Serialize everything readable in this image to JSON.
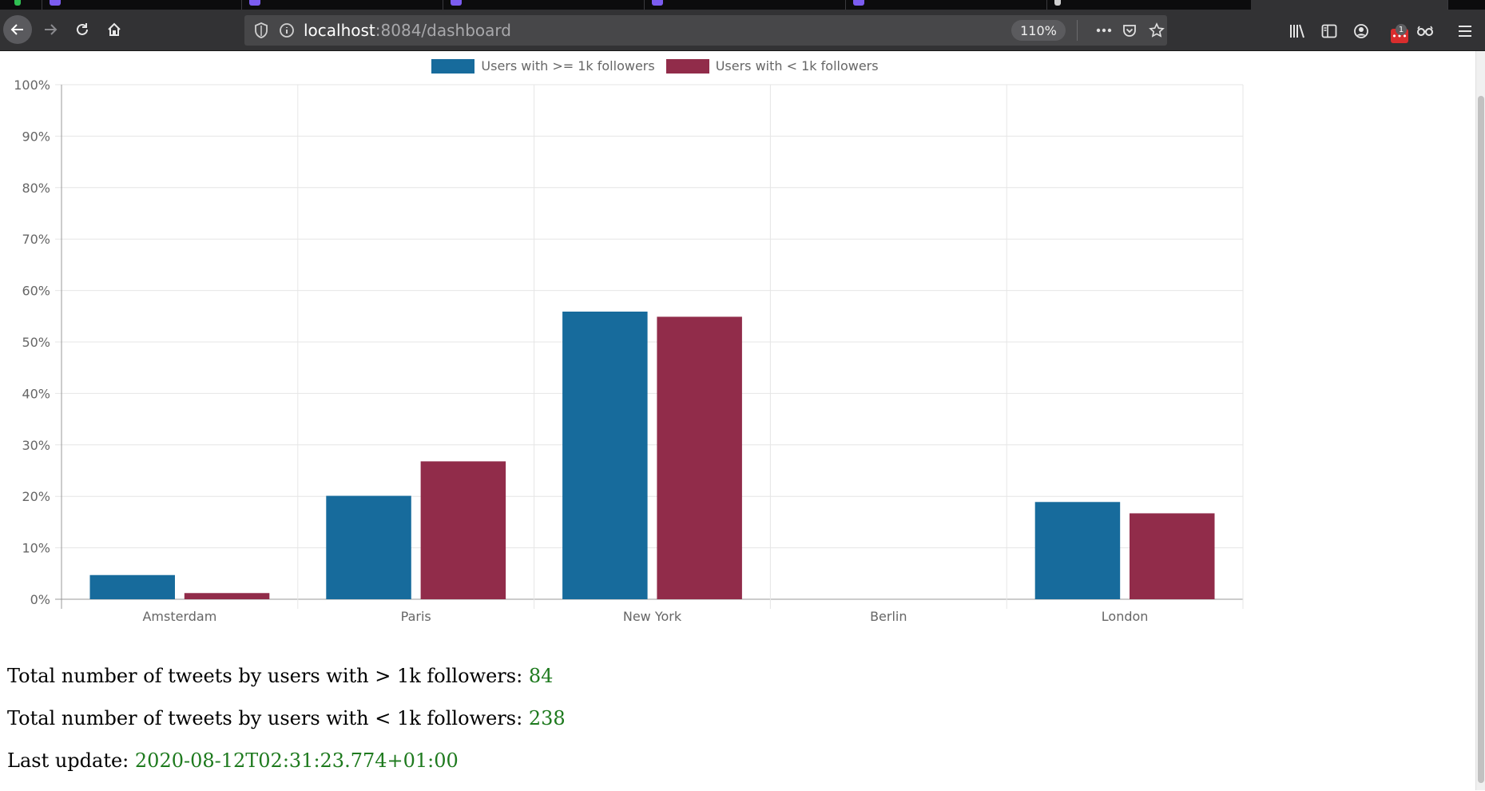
{
  "browser": {
    "url_host": "localhost",
    "url_rest": ":8084/dashboard",
    "zoom": "110%",
    "menu_badge": "1"
  },
  "chart_data": {
    "type": "bar",
    "categories": [
      "Amsterdam",
      "Paris",
      "New York",
      "Berlin",
      "London"
    ],
    "series": [
      {
        "name": "Users with >= 1k followers",
        "color": "#176b9c",
        "values": [
          4.7,
          20.1,
          55.9,
          0,
          18.9
        ]
      },
      {
        "name": "Users with < 1k followers",
        "color": "#912c4a",
        "values": [
          1.2,
          26.8,
          54.9,
          0,
          16.7
        ]
      }
    ],
    "yticks": [
      "0%",
      "10%",
      "20%",
      "30%",
      "40%",
      "50%",
      "60%",
      "70%",
      "80%",
      "90%",
      "100%"
    ],
    "ylim": [
      0,
      100
    ],
    "grid": true,
    "legend_position": "top-center"
  },
  "stats": {
    "above_label": "Total number of tweets by users with > 1k followers:",
    "above_value": "84",
    "below_label": "Total number of tweets by users with < 1k followers:",
    "below_value": "238",
    "update_label": "Last update:",
    "update_value": "2020-08-12T02:31:23.774+01:00"
  }
}
